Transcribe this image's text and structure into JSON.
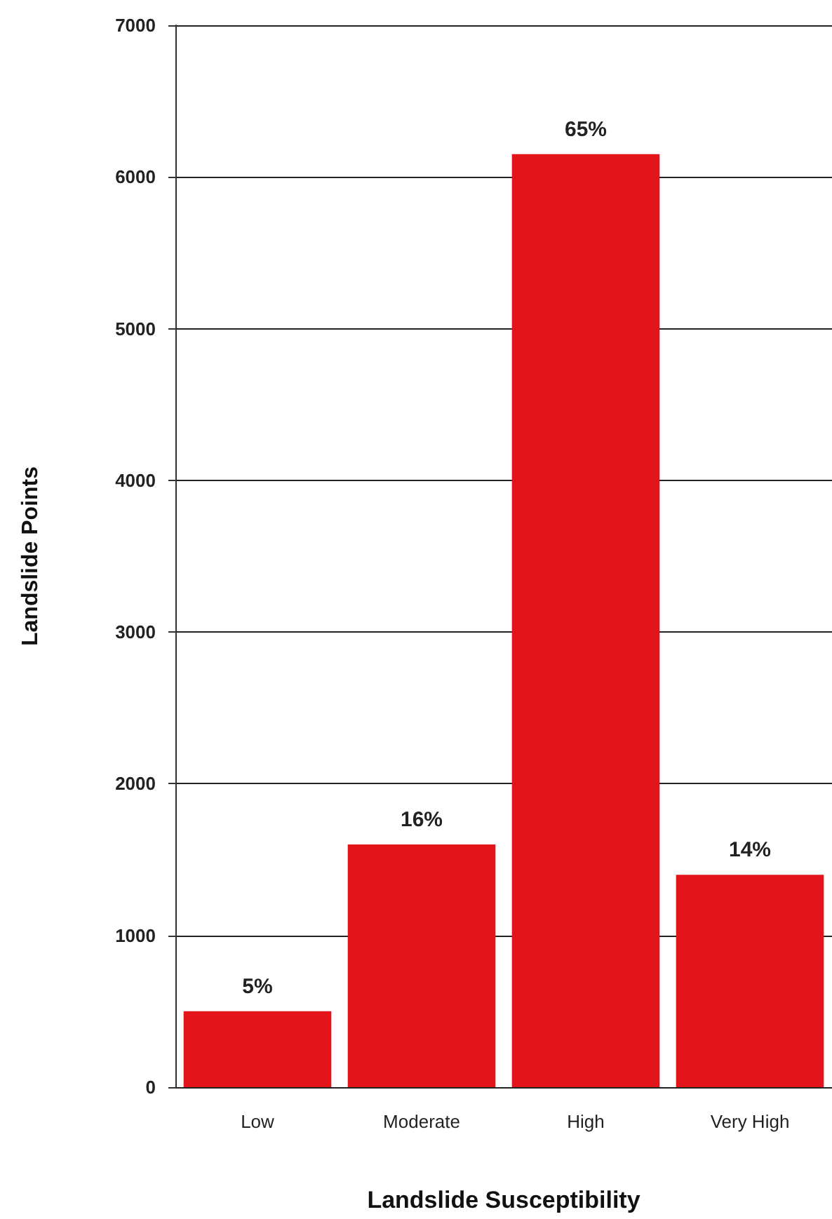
{
  "chart_data": {
    "type": "bar",
    "xlabel": "Landslide Susceptibility",
    "ylabel": "Landslide Points",
    "categories": [
      "Low",
      "Moderate",
      "High",
      "Very High"
    ],
    "values": [
      500,
      1600,
      6150,
      1400
    ],
    "annotations": [
      {
        "text": "5%",
        "x": "Low",
        "y": 500
      },
      {
        "text": "16%",
        "x": "Moderate",
        "y": 1600
      },
      {
        "text": "65%",
        "x": "High",
        "y": 6150
      },
      {
        "text": "14%",
        "x": "Very High",
        "y": 1400
      }
    ],
    "color": "#e4141b",
    "ylim": [
      0,
      7000
    ],
    "yticks": [
      0,
      1000,
      2000,
      3000,
      4000,
      5000,
      6000,
      7000
    ],
    "grid": "y"
  }
}
